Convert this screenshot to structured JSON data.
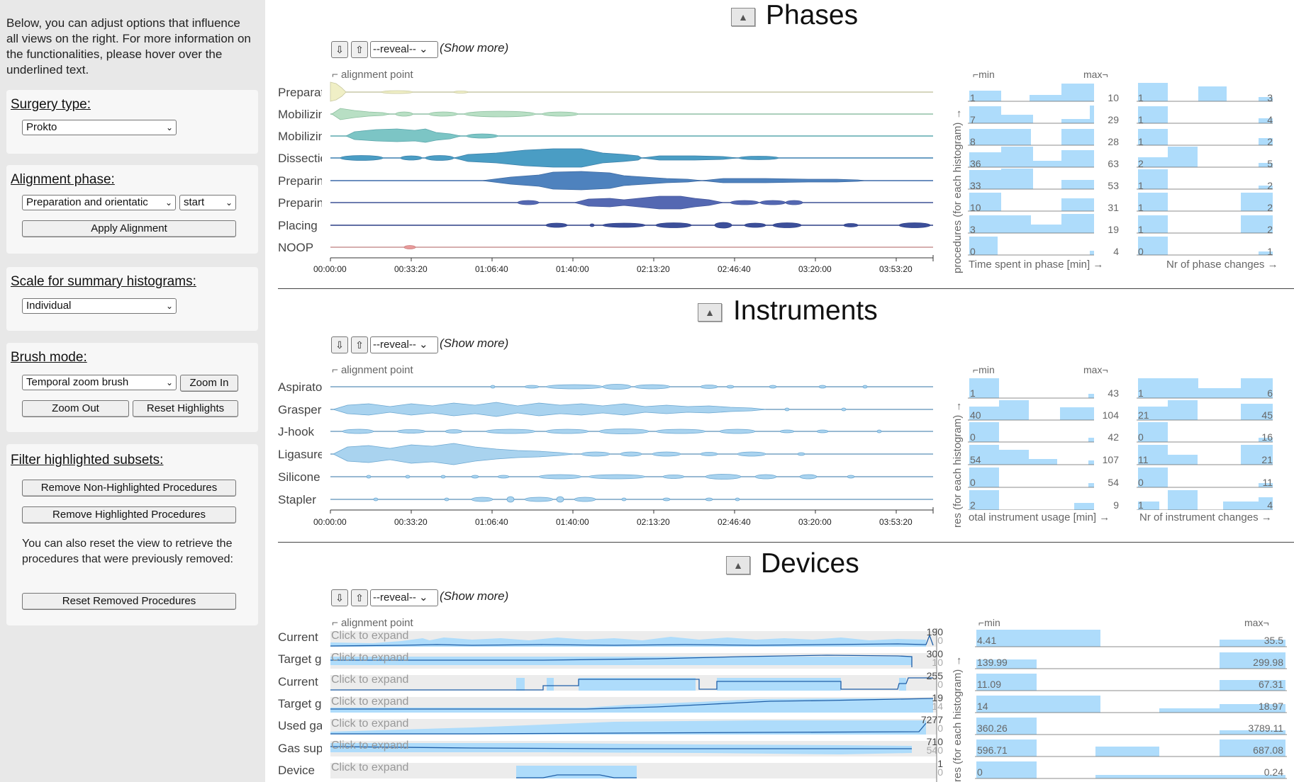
{
  "sidebar": {
    "intro": "Below, you can adjust options that influence all views on the right. For more information on the functionalities, please hover over the underlined text.",
    "surgery_type": {
      "title": "Surgery type:",
      "value": "Prokto"
    },
    "alignment": {
      "title": "Alignment phase:",
      "phase_value": "Preparation and orientatic",
      "point_value": "start",
      "apply_label": "Apply Alignment"
    },
    "scale": {
      "title": "Scale for summary histograms:",
      "value": "Individual"
    },
    "brush": {
      "title": "Brush mode:",
      "value": "Temporal zoom brush",
      "zoom_in": "Zoom In",
      "zoom_out": "Zoom Out",
      "reset_highlights": "Reset Highlights"
    },
    "filter": {
      "title": "Filter highlighted subsets:",
      "remove_non": "Remove Non-Highlighted Procedures",
      "remove_high": "Remove Highlighted Procedures",
      "note": "You can also reset the view to retrieve the procedures that were previously removed:",
      "reset_removed": "Reset Removed Procedures"
    }
  },
  "common": {
    "reveal": "--reveal--",
    "show_more": "(Show more)",
    "alignment_point": "alignment point",
    "arrow_down": "⇩",
    "arrow_up": "⇧",
    "collapse": "▲",
    "min": "⌐min",
    "max": "max¬",
    "click_to_expand": "Click to expand",
    "time_ticks": [
      "00:00:00",
      "00:33:20",
      "01:06:40",
      "01:40:00",
      "02:13:20",
      "02:46:40",
      "03:20:00",
      "03:53:20"
    ]
  },
  "phases": {
    "title": "Phases",
    "rows": [
      "Preparat",
      "Mobilizin",
      "Mobilizin",
      "Dissectio",
      "Preparin",
      "Preparin",
      "Placing",
      "NOOP"
    ],
    "colors": [
      "#f0efc6",
      "#b8dfc4",
      "#7cc5c5",
      "#4a9dc4",
      "#4e82be",
      "#5468b2",
      "#3c4f9a",
      "#e89a9a"
    ],
    "hist1_title": "Time spent in phase [min] →",
    "hist2_title": "Nr of phase changes →",
    "vertical_title": "procedures (for each histogram) →",
    "hist1": [
      [
        "1",
        "10"
      ],
      [
        "7",
        "29"
      ],
      [
        "8",
        "28"
      ],
      [
        "36",
        "63"
      ],
      [
        "33",
        "53"
      ],
      [
        "10",
        "31"
      ],
      [
        "3",
        "19"
      ],
      [
        "0",
        "4"
      ]
    ],
    "hist2": [
      [
        "1",
        "3"
      ],
      [
        "1",
        "4"
      ],
      [
        "1",
        "2"
      ],
      [
        "2",
        "5"
      ],
      [
        "1",
        "2"
      ],
      [
        "1",
        "2"
      ],
      [
        "1",
        "2"
      ],
      [
        "0",
        "1"
      ]
    ]
  },
  "instruments": {
    "title": "Instruments",
    "rows": [
      "Aspirato",
      "Grasper",
      "J-hook",
      "Ligasure",
      "Silicone",
      "Stapler"
    ],
    "hist1_title": "otal instrument usage [min] →",
    "hist2_title": "Nr of instrument changes →",
    "vertical_title": "res (for each histogram) →",
    "hist1": [
      [
        "1",
        "43"
      ],
      [
        "40",
        "104"
      ],
      [
        "0",
        "42"
      ],
      [
        "54",
        "107"
      ],
      [
        "0",
        "54"
      ],
      [
        "2",
        "9"
      ]
    ],
    "hist2": [
      [
        "1",
        "6"
      ],
      [
        "21",
        "45"
      ],
      [
        "0",
        "16"
      ],
      [
        "11",
        "21"
      ],
      [
        "0",
        "11"
      ],
      [
        "1",
        "4"
      ]
    ]
  },
  "devices": {
    "title": "Devices",
    "rows": [
      "Current",
      "Target g",
      "Current",
      "Target g",
      "Used ga",
      "Gas sup",
      "Device"
    ],
    "maxes": [
      "190",
      "300",
      "255",
      "19",
      "7277",
      "710",
      "1"
    ],
    "mins": [
      "0",
      "10",
      "0",
      "14",
      "0",
      "540",
      "0"
    ],
    "vertical_title": "res (for each histogram) →",
    "hist": [
      [
        "4.41",
        "35.5"
      ],
      [
        "139.99",
        "299.98"
      ],
      [
        "11.09",
        "67.31"
      ],
      [
        "14",
        "18.97"
      ],
      [
        "360.26",
        "3789.11"
      ],
      [
        "596.71",
        "687.08"
      ],
      [
        "0",
        "0.24"
      ]
    ]
  }
}
